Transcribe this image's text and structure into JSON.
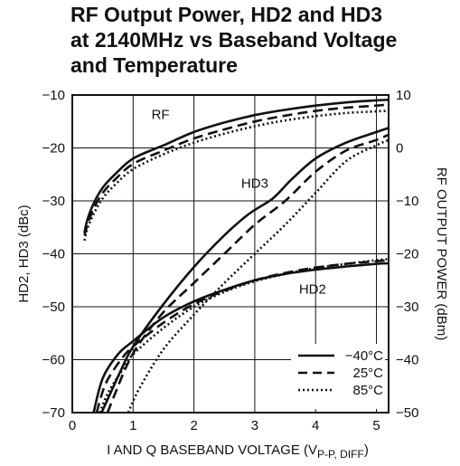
{
  "chart_data": {
    "type": "line",
    "title_lines": [
      "RF Output Power, HD2 and HD3",
      "at 2140MHz vs Baseband Voltage",
      "and Temperature"
    ],
    "xlabel_main": "I AND Q BASEBAND VOLTAGE (V",
    "xlabel_sub": "P-P, DIFF",
    "xlabel_close": ")",
    "ylabel_left": "HD2, HD3 (dBc)",
    "ylabel_right": "RF OUTPUT POWER (dBm)",
    "xlim": [
      0,
      5.2
    ],
    "ylim_left": [
      -70,
      -10
    ],
    "ylim_right": [
      -50,
      10
    ],
    "x_ticks": [
      "0",
      "1",
      "2",
      "3",
      "4",
      "5"
    ],
    "y_left_ticks": [
      "−10",
      "−20",
      "−30",
      "−40",
      "−50",
      "−60",
      "−70"
    ],
    "y_right_ticks": [
      "10",
      "0",
      "−10",
      "−20",
      "−30",
      "−40",
      "−50"
    ],
    "grid": true,
    "annotations": [
      {
        "text": "RF",
        "x": 1.45,
        "y": -14.5
      },
      {
        "text": "HD3",
        "x": 3.0,
        "y": -27.5
      },
      {
        "text": "HD2",
        "x": 3.95,
        "y": -47.5
      }
    ],
    "legend": {
      "placement": "bottom-right",
      "entries": [
        {
          "label": "−40°C",
          "style": "solid"
        },
        {
          "label": "25°C",
          "style": "dashed"
        },
        {
          "label": "85°C",
          "style": "dotted"
        }
      ]
    },
    "series": [
      {
        "group": "RF",
        "temp": "−40°C",
        "style": "solid",
        "x": [
          0.2,
          0.25,
          0.35,
          0.5,
          0.7,
          1.0,
          1.5,
          2.0,
          2.5,
          3.0,
          3.5,
          4.0,
          4.5,
          5.0,
          5.2
        ],
        "y": [
          -36,
          -33.5,
          -30.5,
          -27.5,
          -25,
          -22,
          -19.5,
          -17,
          -15.2,
          -13.8,
          -12.8,
          -12.0,
          -11.4,
          -11.0,
          -10.9
        ]
      },
      {
        "group": "RF",
        "temp": "25°C",
        "style": "dashed",
        "x": [
          0.2,
          0.25,
          0.35,
          0.5,
          0.7,
          1.0,
          1.5,
          2.0,
          2.5,
          3.0,
          3.5,
          4.0,
          4.5,
          5.0,
          5.2
        ],
        "y": [
          -36.5,
          -34.5,
          -31.5,
          -28.5,
          -26,
          -23,
          -20.5,
          -18.2,
          -16.5,
          -15,
          -13.9,
          -13,
          -12.4,
          -12,
          -11.8
        ]
      },
      {
        "group": "RF",
        "temp": "85°C",
        "style": "dotted",
        "x": [
          0.2,
          0.25,
          0.35,
          0.5,
          0.7,
          1.0,
          1.5,
          2.0,
          2.5,
          3.0,
          3.5,
          4.0,
          4.5,
          5.0,
          5.2
        ],
        "y": [
          -37.5,
          -35.2,
          -32.5,
          -29.5,
          -27,
          -24,
          -21.2,
          -19.0,
          -17.3,
          -15.9,
          -14.8,
          -14.0,
          -13.4,
          -13.1,
          -13.0
        ]
      },
      {
        "group": "HD3",
        "temp": "−40°C",
        "style": "solid",
        "x": [
          0.48,
          0.6,
          0.8,
          1.0,
          1.5,
          2.0,
          2.5,
          2.9,
          3.3,
          3.6,
          4.0,
          4.5,
          5.0,
          5.2
        ],
        "y": [
          -70,
          -67,
          -62,
          -57.5,
          -49.5,
          -42.5,
          -36.5,
          -32.5,
          -29.5,
          -26,
          -22,
          -19,
          -17,
          -16.2
        ]
      },
      {
        "group": "HD3",
        "temp": "25°C",
        "style": "dashed",
        "x": [
          0.58,
          0.7,
          0.9,
          1.1,
          1.5,
          2.0,
          2.5,
          3.0,
          3.5,
          4.0,
          4.5,
          5.0,
          5.2
        ],
        "y": [
          -70,
          -66.5,
          -61,
          -57,
          -51,
          -45.5,
          -40,
          -34.5,
          -30,
          -24.5,
          -20.5,
          -18.5,
          -17.5
        ]
      },
      {
        "group": "HD3",
        "temp": "85°C",
        "style": "dotted",
        "x": [
          0.92,
          1.1,
          1.5,
          2.0,
          2.5,
          3.0,
          3.5,
          4.0,
          4.5,
          5.0,
          5.2
        ],
        "y": [
          -70,
          -65.5,
          -58,
          -51.5,
          -45.5,
          -40,
          -34.5,
          -28.5,
          -22.5,
          -19.5,
          -18.5
        ]
      },
      {
        "group": "HD2",
        "temp": "−40°C",
        "style": "solid",
        "x": [
          0.35,
          0.5,
          0.75,
          1.0,
          1.5,
          2.0,
          2.5,
          3.0,
          3.5,
          4.0,
          4.5,
          5.0,
          5.2
        ],
        "y": [
          -70,
          -63.5,
          -59,
          -56.5,
          -52,
          -49,
          -46.8,
          -45,
          -43.8,
          -43,
          -42.4,
          -41.9,
          -41.8
        ]
      },
      {
        "group": "HD2",
        "temp": "25°C",
        "style": "dashed",
        "x": [
          0.4,
          0.55,
          0.8,
          1.0,
          1.5,
          2.0,
          2.5,
          3.0,
          3.5,
          4.0,
          4.5,
          5.0,
          5.2
        ],
        "y": [
          -70,
          -64.5,
          -60,
          -57.5,
          -53,
          -49.5,
          -47,
          -45,
          -43.6,
          -42.6,
          -41.9,
          -41.4,
          -41.2
        ]
      },
      {
        "group": "HD2",
        "temp": "85°C",
        "style": "dotted",
        "x": [
          0.45,
          0.6,
          0.85,
          1.0,
          1.5,
          2.0,
          2.5,
          3.0,
          3.5,
          4.0,
          4.5,
          5.0,
          5.2
        ],
        "y": [
          -70,
          -66,
          -61.5,
          -59,
          -54,
          -50,
          -47.2,
          -45.2,
          -43.8,
          -42.7,
          -41.9,
          -41.2,
          -41.0
        ]
      }
    ]
  }
}
